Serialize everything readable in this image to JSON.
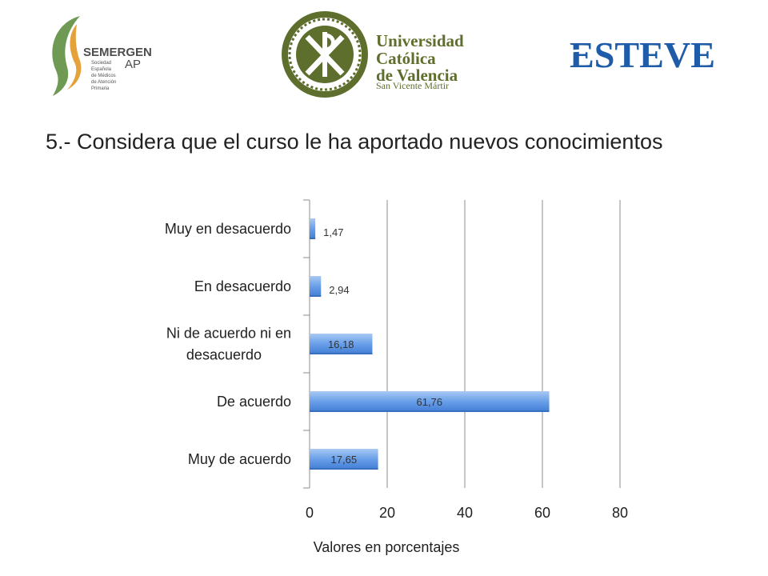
{
  "logos": {
    "semergen": {
      "name": "SEMERGEN",
      "ap": "AP",
      "subtitle": [
        "Sociedad",
        "Española",
        "de Médicos",
        "de Atención",
        "Primaria"
      ]
    },
    "ucv": {
      "line1": "Universidad",
      "line2": "Católica",
      "line3": "de Valencia",
      "line4": "San Vicente Mártir"
    },
    "esteve": {
      "name": "ESTEVE"
    }
  },
  "title": "5.- Considera que el curso le ha aportado nuevos conocimientos",
  "colors": {
    "bar_light": "#a9c9f3",
    "bar_dark": "#3f7dd6",
    "semergen_green": "#6e9a54",
    "semergen_orange": "#e5a13a",
    "ucv_green": "#5e6e2c",
    "esteve_blue": "#1e5ba8"
  },
  "chart_data": {
    "type": "bar",
    "orientation": "horizontal",
    "title": "5.- Considera que el curso le ha aportado nuevos conocimientos",
    "xlabel": "Valores en porcentajes",
    "ylabel": "",
    "xlim": [
      0,
      80
    ],
    "xticks": [
      0,
      20,
      40,
      60,
      80
    ],
    "grid": true,
    "categories": [
      {
        "label_lines": [
          "Muy en desacuerdo"
        ],
        "value": 1.47,
        "value_label": "1,47"
      },
      {
        "label_lines": [
          "En desacuerdo"
        ],
        "value": 2.94,
        "value_label": "2,94"
      },
      {
        "label_lines": [
          "Ni de acuerdo ni en",
          "desacuerdo"
        ],
        "value": 16.18,
        "value_label": "16,18"
      },
      {
        "label_lines": [
          "De acuerdo"
        ],
        "value": 61.76,
        "value_label": "61,76"
      },
      {
        "label_lines": [
          "Muy de acuerdo"
        ],
        "value": 17.65,
        "value_label": "17,65"
      }
    ]
  }
}
